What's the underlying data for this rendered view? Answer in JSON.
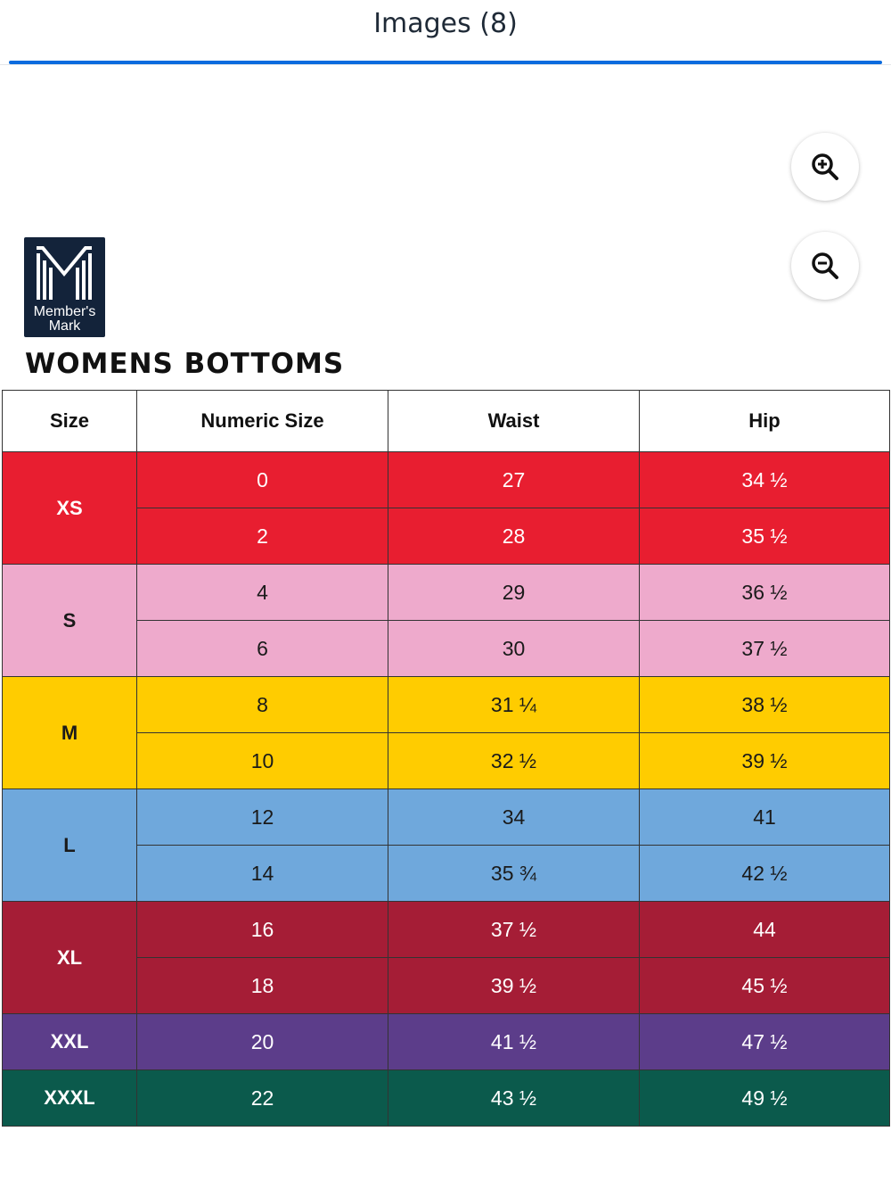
{
  "header": {
    "title": "Images (8)"
  },
  "colors": {
    "accent": "#0b6bde",
    "xs": "#e81e30",
    "s": "#eeaacc",
    "m": "#ffcc00",
    "l": "#6fa8dc",
    "xl": "#a51d36",
    "xxl": "#5c3d8a",
    "xxxl": "#0b5a4c"
  },
  "zoom": {
    "in_icon": "zoom-in-icon",
    "out_icon": "zoom-out-icon"
  },
  "logo": {
    "line1": "Member's",
    "line2": "Mark"
  },
  "chart": {
    "title": "WOMENS BOTTOMS",
    "columns": [
      "Size",
      "Numeric Size",
      "Waist",
      "Hip"
    ],
    "groups": [
      {
        "size": "XS",
        "rows": [
          {
            "numeric": "0",
            "waist": "27",
            "hip": "34 ½"
          },
          {
            "numeric": "2",
            "waist": "28",
            "hip": "35 ½"
          }
        ]
      },
      {
        "size": "S",
        "rows": [
          {
            "numeric": "4",
            "waist": "29",
            "hip": "36 ½"
          },
          {
            "numeric": "6",
            "waist": "30",
            "hip": "37 ½"
          }
        ]
      },
      {
        "size": "M",
        "rows": [
          {
            "numeric": "8",
            "waist": "31 ¼",
            "hip": "38 ½"
          },
          {
            "numeric": "10",
            "waist": "32 ½",
            "hip": "39 ½"
          }
        ]
      },
      {
        "size": "L",
        "rows": [
          {
            "numeric": "12",
            "waist": "34",
            "hip": "41"
          },
          {
            "numeric": "14",
            "waist": "35 ¾",
            "hip": "42 ½"
          }
        ]
      },
      {
        "size": "XL",
        "rows": [
          {
            "numeric": "16",
            "waist": "37 ½",
            "hip": "44"
          },
          {
            "numeric": "18",
            "waist": "39 ½",
            "hip": "45 ½"
          }
        ]
      },
      {
        "size": "XXL",
        "rows": [
          {
            "numeric": "20",
            "waist": "41 ½",
            "hip": "47 ½"
          }
        ]
      },
      {
        "size": "XXXL",
        "rows": [
          {
            "numeric": "22",
            "waist": "43 ½",
            "hip": "49 ½"
          }
        ]
      }
    ]
  }
}
